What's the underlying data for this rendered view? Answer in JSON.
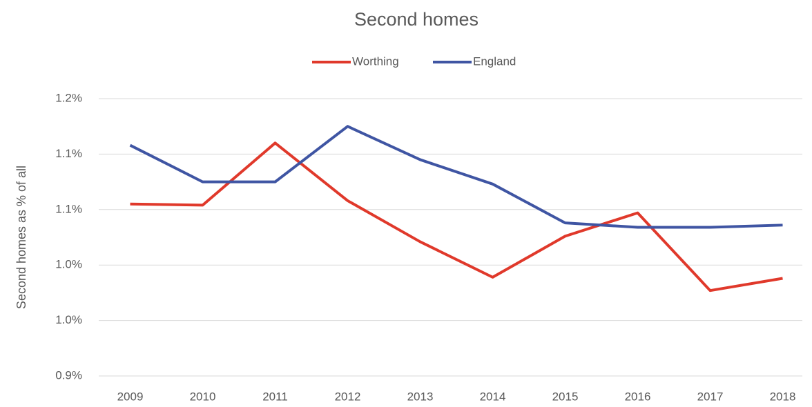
{
  "chart_data": {
    "type": "line",
    "title": "Second homes",
    "y_label": "Second homes as % of all",
    "categories": [
      "2009",
      "2010",
      "2011",
      "2012",
      "2013",
      "2014",
      "2015",
      "2016",
      "2017",
      "2018"
    ],
    "series": [
      {
        "name": "Worthing",
        "color": "#e0392b",
        "values": [
          1.055,
          1.054,
          1.11,
          1.058,
          1.021,
          0.989,
          1.026,
          1.047,
          0.977,
          0.988
        ]
      },
      {
        "name": "England",
        "color": "#3f55a3",
        "values": [
          1.108,
          1.075,
          1.075,
          1.125,
          1.095,
          1.073,
          1.038,
          1.034,
          1.034,
          1.036
        ]
      }
    ],
    "ylim": [
      0.9,
      1.15
    ],
    "yticks": [
      {
        "value": 0.9,
        "label": "0.9%"
      },
      {
        "value": 0.95,
        "label": "1.0%"
      },
      {
        "value": 1.0,
        "label": "1.0%"
      },
      {
        "value": 1.05,
        "label": "1.1%"
      },
      {
        "value": 1.1,
        "label": "1.1%"
      },
      {
        "value": 1.15,
        "label": "1.2%"
      }
    ],
    "grid": true,
    "legend": "top"
  }
}
